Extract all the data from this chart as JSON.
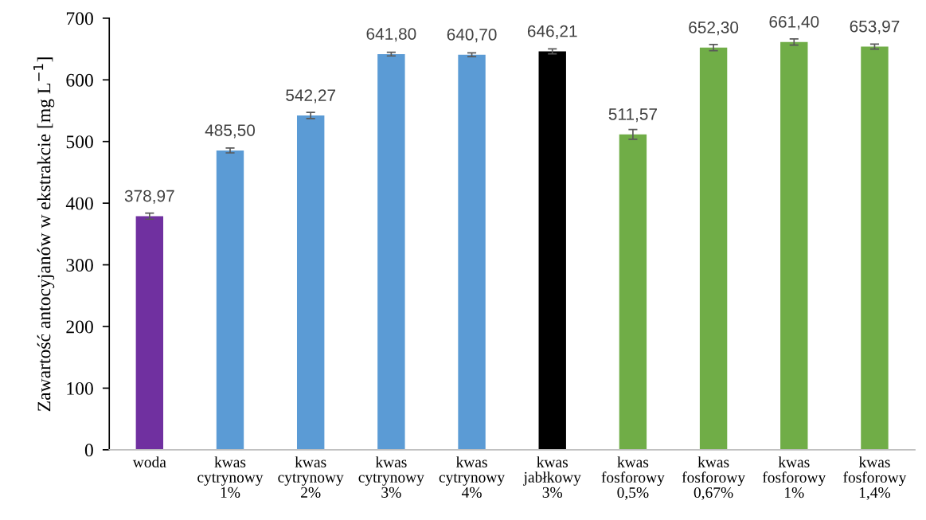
{
  "chart_data": {
    "type": "bar",
    "ylabel": "Zawartość antocyjanów w ekstrakcie [mg L$^{−1}$]",
    "categories": [
      "woda",
      "kwas\ncytrynowy\n1%",
      "kwas\ncytrynowy\n2%",
      "kwas\ncytrynowy\n3%",
      "kwas\ncytrynowy\n4%",
      "kwas\njabłkowy\n3%",
      "kwas\nfosforowy\n0,5%",
      "kwas\nfosforowy\n0,67%",
      "kwas\nfosforowy\n1%",
      "kwas\nfosforowy\n1,4%"
    ],
    "values": [
      378.97,
      485.5,
      542.27,
      641.8,
      640.7,
      646.21,
      511.57,
      652.3,
      661.4,
      653.97
    ],
    "colors": [
      "#7030a0",
      "#5b9bd5",
      "#5b9bd5",
      "#5b9bd5",
      "#5b9bd5",
      "#000000",
      "#70ad47",
      "#70ad47",
      "#70ad47",
      "#70ad47"
    ],
    "errors": [
      5,
      4,
      5,
      3,
      3,
      4,
      8,
      5,
      5,
      4
    ],
    "value_labels": [
      "378,97",
      "485,50",
      "542,27",
      "641,80",
      "640,70",
      "646,21",
      "511,57",
      "652,30",
      "661,40",
      "653,97"
    ],
    "ylim": [
      0,
      700
    ],
    "yticks": [
      0,
      100,
      200,
      300,
      400,
      500,
      600,
      700
    ],
    "grid": false,
    "legend": false
  }
}
